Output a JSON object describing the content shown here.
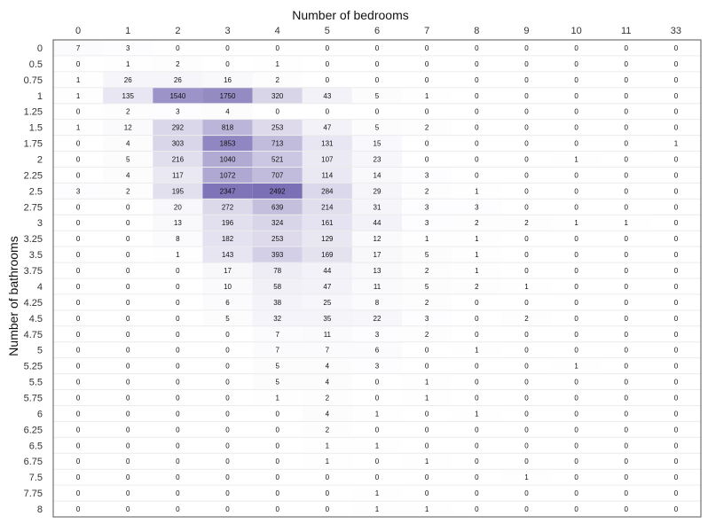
{
  "chart_data": {
    "type": "heatmap",
    "title": "",
    "xlabel": "Number of bedrooms",
    "ylabel": "Number of bathrooms",
    "x_categories": [
      "0",
      "1",
      "2",
      "3",
      "4",
      "5",
      "6",
      "7",
      "8",
      "9",
      "10",
      "11",
      "33"
    ],
    "y_categories": [
      "0",
      "0.5",
      "0.75",
      "1",
      "1.25",
      "1.5",
      "1.75",
      "2",
      "2.25",
      "2.5",
      "2.75",
      "3",
      "3.25",
      "3.5",
      "3.75",
      "4",
      "4.25",
      "4.5",
      "4.75",
      "5",
      "5.25",
      "5.5",
      "5.75",
      "6",
      "6.25",
      "6.5",
      "6.75",
      "7.5",
      "7.75",
      "8"
    ],
    "values": [
      [
        7,
        3,
        0,
        0,
        0,
        0,
        0,
        0,
        0,
        0,
        0,
        0,
        0
      ],
      [
        0,
        1,
        2,
        0,
        1,
        0,
        0,
        0,
        0,
        0,
        0,
        0,
        0
      ],
      [
        1,
        26,
        26,
        16,
        2,
        0,
        0,
        0,
        0,
        0,
        0,
        0,
        0
      ],
      [
        1,
        135,
        1540,
        1750,
        320,
        43,
        5,
        1,
        0,
        0,
        0,
        0,
        0
      ],
      [
        0,
        2,
        3,
        4,
        0,
        0,
        0,
        0,
        0,
        0,
        0,
        0,
        0
      ],
      [
        1,
        12,
        292,
        818,
        253,
        47,
        5,
        2,
        0,
        0,
        0,
        0,
        0
      ],
      [
        0,
        4,
        303,
        1853,
        713,
        131,
        15,
        0,
        0,
        0,
        0,
        0,
        1
      ],
      [
        0,
        5,
        216,
        1040,
        521,
        107,
        23,
        0,
        0,
        0,
        1,
        0,
        0
      ],
      [
        0,
        4,
        117,
        1072,
        707,
        114,
        14,
        3,
        0,
        0,
        0,
        0,
        0
      ],
      [
        3,
        2,
        195,
        2347,
        2492,
        284,
        29,
        2,
        1,
        0,
        0,
        0,
        0
      ],
      [
        0,
        0,
        20,
        272,
        639,
        214,
        31,
        3,
        3,
        0,
        0,
        0,
        0
      ],
      [
        0,
        0,
        13,
        196,
        324,
        161,
        44,
        3,
        2,
        2,
        1,
        1,
        0
      ],
      [
        0,
        0,
        8,
        182,
        253,
        129,
        12,
        1,
        1,
        0,
        0,
        0,
        0
      ],
      [
        0,
        0,
        1,
        143,
        393,
        169,
        17,
        5,
        1,
        0,
        0,
        0,
        0
      ],
      [
        0,
        0,
        0,
        17,
        78,
        44,
        13,
        2,
        1,
        0,
        0,
        0,
        0
      ],
      [
        0,
        0,
        0,
        10,
        58,
        47,
        11,
        5,
        2,
        1,
        0,
        0,
        0
      ],
      [
        0,
        0,
        0,
        6,
        38,
        25,
        8,
        2,
        0,
        0,
        0,
        0,
        0
      ],
      [
        0,
        0,
        0,
        5,
        32,
        35,
        22,
        3,
        0,
        2,
        0,
        0,
        0
      ],
      [
        0,
        0,
        0,
        0,
        7,
        11,
        3,
        2,
        0,
        0,
        0,
        0,
        0
      ],
      [
        0,
        0,
        0,
        0,
        7,
        7,
        6,
        0,
        1,
        0,
        0,
        0,
        0
      ],
      [
        0,
        0,
        0,
        0,
        5,
        4,
        3,
        0,
        0,
        0,
        1,
        0,
        0
      ],
      [
        0,
        0,
        0,
        0,
        5,
        4,
        0,
        1,
        0,
        0,
        0,
        0,
        0
      ],
      [
        0,
        0,
        0,
        0,
        1,
        2,
        0,
        1,
        0,
        0,
        0,
        0,
        0
      ],
      [
        0,
        0,
        0,
        0,
        0,
        4,
        1,
        0,
        1,
        0,
        0,
        0,
        0
      ],
      [
        0,
        0,
        0,
        0,
        0,
        2,
        0,
        0,
        0,
        0,
        0,
        0,
        0
      ],
      [
        0,
        0,
        0,
        0,
        0,
        1,
        1,
        0,
        0,
        0,
        0,
        0,
        0
      ],
      [
        0,
        0,
        0,
        0,
        0,
        1,
        0,
        1,
        0,
        0,
        0,
        0,
        0
      ],
      [
        0,
        0,
        0,
        0,
        0,
        0,
        0,
        0,
        0,
        1,
        0,
        0,
        0
      ],
      [
        0,
        0,
        0,
        0,
        0,
        0,
        1,
        0,
        0,
        0,
        0,
        0,
        0
      ],
      [
        0,
        0,
        0,
        0,
        0,
        0,
        1,
        1,
        0,
        0,
        0,
        0,
        0
      ]
    ],
    "color_low": "#ffffff",
    "color_high": "#7b6fb5",
    "grid": true,
    "legend": "none"
  }
}
